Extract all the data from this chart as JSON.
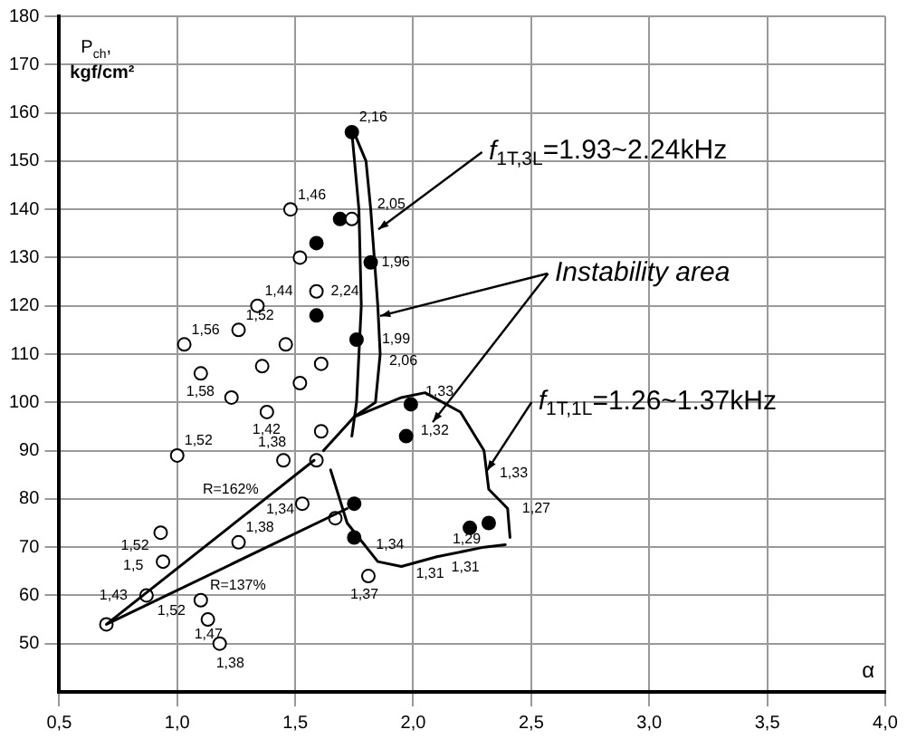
{
  "chart_data": {
    "type": "scatter",
    "xlabel": "α",
    "ylabel": "P$_{ch}$, kgf/cm²",
    "xlim": [
      0.5,
      4.0
    ],
    "xticks": [
      {
        "value": 0.5,
        "label": "0,5"
      },
      {
        "value": 1.0,
        "label": "1,0"
      },
      {
        "value": 1.5,
        "label": "1,5"
      },
      {
        "value": 2.0,
        "label": "2,0"
      },
      {
        "value": 2.5,
        "label": "2,5"
      },
      {
        "value": 3.0,
        "label": "3,0"
      },
      {
        "value": 3.5,
        "label": "3,5"
      },
      {
        "value": 4.0,
        "label": "4,0"
      }
    ],
    "ylim": [
      40,
      180
    ],
    "yticks": [
      50,
      60,
      70,
      80,
      90,
      100,
      110,
      120,
      130,
      140,
      150,
      160,
      170,
      180
    ],
    "grid": true,
    "legend": false,
    "series": [
      {
        "type": "line",
        "marker": "none",
        "color": "#000000",
        "x": [
          1.74,
          1.77,
          1.78,
          1.77,
          1.76,
          1.74
        ],
        "values": [
          156,
          140,
          120,
          110,
          100,
          93
        ]
      },
      {
        "type": "line",
        "marker": "none",
        "color": "#000000",
        "x": [
          1.74,
          1.8,
          1.82,
          1.85,
          1.86,
          1.84,
          1.75
        ],
        "values": [
          157,
          150,
          140,
          120,
          110,
          100,
          97
        ]
      },
      {
        "type": "line",
        "marker": "none",
        "color": "#000000",
        "x": [
          1.62,
          1.75,
          1.95,
          2.05,
          2.2,
          2.3,
          2.32,
          2.4,
          2.41
        ],
        "values": [
          90,
          97,
          101,
          102,
          98,
          90,
          82,
          78,
          72
        ]
      },
      {
        "type": "line",
        "marker": "none",
        "color": "#000000",
        "x": [
          1.65,
          1.72,
          1.85,
          1.95,
          2.1,
          2.3,
          2.39
        ],
        "values": [
          86,
          75,
          67,
          66,
          68,
          70,
          70.5
        ]
      },
      {
        "type": "line",
        "marker": "none",
        "color": "#000000",
        "x": [
          1.58,
          0.7,
          1.72
        ],
        "values": [
          88,
          54,
          78
        ]
      },
      {
        "marker": "circle",
        "color": "#ffffff",
        "x": [
          0.7,
          1.03,
          1.26,
          1.34,
          1.48,
          1.74,
          1.52,
          1.59,
          1.46,
          1.1,
          1.36,
          1.61,
          1.23,
          1.52,
          1.38,
          1.0,
          1.45,
          1.59,
          1.61,
          0.93,
          0.94,
          1.26,
          0.87,
          1.1,
          1.13,
          1.18,
          1.67,
          1.81,
          1.53
        ],
        "values": [
          54,
          112,
          115,
          120,
          140,
          138,
          130,
          123,
          112,
          106,
          107.5,
          108,
          101,
          104,
          98,
          89,
          88,
          88,
          94,
          73,
          67,
          71,
          60,
          59,
          55,
          50,
          76,
          64,
          79
        ]
      },
      {
        "marker": "circle",
        "color": "#000000",
        "x": [
          1.69,
          1.59,
          1.82,
          1.59,
          1.76,
          1.74,
          1.99,
          1.97,
          2.32,
          2.24,
          1.75,
          1.75
        ],
        "values": [
          138,
          133,
          129,
          118,
          113,
          156,
          99.6,
          93,
          75,
          74,
          79,
          72
        ]
      }
    ],
    "annotations": [
      {
        "text": "f$_{1T,3L}$=1.93~2.24kHz",
        "x": 1.85,
        "y": 136
      },
      {
        "text": "Instability area",
        "x": 1.86,
        "y": 118
      },
      {
        "text": "f$_{1T,1L}$=1.26~1.37kHz",
        "x": 2.31,
        "y": 86
      },
      {
        "text": "2,16",
        "x": 1.74,
        "y": 156
      },
      {
        "text": "1,46",
        "x": 1.48,
        "y": 140
      },
      {
        "text": "2,05",
        "x": 1.74,
        "y": 138
      },
      {
        "text": "1,96",
        "x": 1.82,
        "y": 129
      },
      {
        "text": "2,06",
        "x": 1.76,
        "y": 113
      },
      {
        "text": "1,99",
        "x": 1.76,
        "y": 113
      },
      {
        "text": "2,24",
        "x": 1.59,
        "y": 123
      },
      {
        "text": "1,56",
        "x": 1.03,
        "y": 112
      },
      {
        "text": "1,52",
        "x": 1.26,
        "y": 115
      },
      {
        "text": "1,44",
        "x": 1.34,
        "y": 120
      },
      {
        "text": "1,58",
        "x": 1.1,
        "y": 106
      },
      {
        "text": "1,52",
        "x": 1.0,
        "y": 89
      },
      {
        "text": "1,42",
        "x": 1.38,
        "y": 98
      },
      {
        "text": "1,38",
        "x": 1.45,
        "y": 88
      },
      {
        "text": "1,52",
        "x": 0.93,
        "y": 73
      },
      {
        "text": "1,5",
        "x": 0.94,
        "y": 67
      },
      {
        "text": "1,38",
        "x": 1.26,
        "y": 71
      },
      {
        "text": "1,43",
        "x": 0.87,
        "y": 60
      },
      {
        "text": "1,52",
        "x": 1.1,
        "y": 59
      },
      {
        "text": "1,47",
        "x": 1.18,
        "y": 50
      },
      {
        "text": "1,38",
        "x": 1.18,
        "y": 50
      },
      {
        "text": "1,34",
        "x": 1.53,
        "y": 79
      },
      {
        "text": "1,37",
        "x": 1.81,
        "y": 64
      },
      {
        "text": "1,31",
        "x": 1.95,
        "y": 66
      },
      {
        "text": "1,31",
        "x": 2.1,
        "y": 68
      },
      {
        "text": "1,33",
        "x": 1.99,
        "y": 99.6
      },
      {
        "text": "1,32",
        "x": 1.97,
        "y": 93
      },
      {
        "text": "1,33",
        "x": 2.32,
        "y": 82
      },
      {
        "text": "1,29",
        "x": 2.32,
        "y": 75
      },
      {
        "text": "1,27",
        "x": 2.4,
        "y": 78
      },
      {
        "text": "1,34",
        "x": 1.75,
        "y": 72
      },
      {
        "text": "R=162%",
        "x": 1.2,
        "y": 73.6
      },
      {
        "text": "R=137%",
        "x": 1.2,
        "y": 65.8
      }
    ]
  }
}
